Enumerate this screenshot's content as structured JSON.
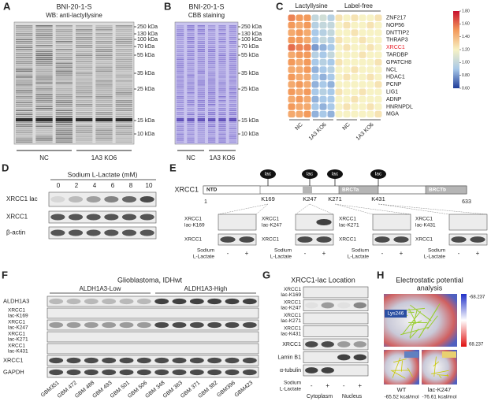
{
  "panels": {
    "A": {
      "letter": "A",
      "title": "BNI-20-1-S",
      "subtitle": "WB: anti-lactyllysine",
      "markers": [
        "250 kDa",
        "130 kDa",
        "100 kDa",
        "70 kDa",
        "55 kDa",
        "35 kDa",
        "25 kDa",
        "15 kDa",
        "10 kDa"
      ],
      "groups": [
        "NC",
        "1A3 KO6"
      ]
    },
    "B": {
      "letter": "B",
      "title": "BNI-20-1-S",
      "subtitle": "CBB staining",
      "markers": [
        "250 kDa",
        "130 kDa",
        "100 kDa",
        "70 kDa",
        "55 kDa",
        "35 kDa",
        "25 kDa",
        "15 kDa",
        "10 kDa"
      ],
      "groups": [
        "NC",
        "1A3 KO6"
      ]
    },
    "C": {
      "letter": "C",
      "group_labels": [
        "Lactyllysine",
        "Label-free"
      ],
      "genes": [
        {
          "name": "ZNF217",
          "color": "#222222"
        },
        {
          "name": "NOP56",
          "color": "#222222"
        },
        {
          "name": "DNTTIP2",
          "color": "#222222"
        },
        {
          "name": "THRAP3",
          "color": "#222222"
        },
        {
          "name": "XRCC1",
          "color": "#e8202a"
        },
        {
          "name": "TARDBP",
          "color": "#222222"
        },
        {
          "name": "GPATCH8",
          "color": "#222222"
        },
        {
          "name": "NCL",
          "color": "#222222"
        },
        {
          "name": "HDAC1",
          "color": "#222222"
        },
        {
          "name": "PCNP",
          "color": "#222222"
        },
        {
          "name": "LIG1",
          "color": "#222222"
        },
        {
          "name": "ADNP",
          "color": "#222222"
        },
        {
          "name": "HNRNPDL",
          "color": "#222222"
        },
        {
          "name": "MGA",
          "color": "#222222"
        }
      ],
      "column_labels": [
        "NC",
        "1A3 KO6",
        "NC",
        "1A3 KO6"
      ],
      "values": [
        [
          1.55,
          1.5,
          1.5,
          1.0,
          1.05,
          0.95,
          1.25,
          1.2,
          1.25,
          1.2,
          1.2,
          1.25
        ],
        [
          1.5,
          1.45,
          1.5,
          0.95,
          1.0,
          1.0,
          1.2,
          1.25,
          1.2,
          1.2,
          1.25,
          1.2
        ],
        [
          1.45,
          1.5,
          1.45,
          0.9,
          0.95,
          1.0,
          1.2,
          1.2,
          1.25,
          1.2,
          1.2,
          1.2
        ],
        [
          1.5,
          1.5,
          1.45,
          0.9,
          1.0,
          0.95,
          1.25,
          1.2,
          1.2,
          1.25,
          1.2,
          1.2
        ],
        [
          1.6,
          1.55,
          1.55,
          0.8,
          0.85,
          0.9,
          1.2,
          1.25,
          1.2,
          1.2,
          1.25,
          1.2
        ],
        [
          1.45,
          1.5,
          1.5,
          0.95,
          0.9,
          1.0,
          1.2,
          1.2,
          1.2,
          1.25,
          1.2,
          1.2
        ],
        [
          1.5,
          1.45,
          1.5,
          0.9,
          0.95,
          0.9,
          1.25,
          1.2,
          1.2,
          1.2,
          1.2,
          1.25
        ],
        [
          1.45,
          1.45,
          1.5,
          0.85,
          0.9,
          0.95,
          1.2,
          1.2,
          1.25,
          1.2,
          1.2,
          1.2
        ],
        [
          1.5,
          1.45,
          1.45,
          0.9,
          0.85,
          0.9,
          1.2,
          1.25,
          1.2,
          1.2,
          1.25,
          1.2
        ],
        [
          1.45,
          1.5,
          1.45,
          0.85,
          0.9,
          0.85,
          1.2,
          1.2,
          1.2,
          1.2,
          1.2,
          1.25
        ],
        [
          1.5,
          1.45,
          1.5,
          0.9,
          0.95,
          0.9,
          1.25,
          1.2,
          1.2,
          1.25,
          1.2,
          1.2
        ],
        [
          1.45,
          1.5,
          1.45,
          0.85,
          0.9,
          0.9,
          1.2,
          1.2,
          1.25,
          1.2,
          1.2,
          1.2
        ],
        [
          1.5,
          1.45,
          1.45,
          0.9,
          0.85,
          0.9,
          1.2,
          1.25,
          1.2,
          1.2,
          1.25,
          1.2
        ],
        [
          1.45,
          1.45,
          1.5,
          0.85,
          0.9,
          0.85,
          1.2,
          1.2,
          1.2,
          1.2,
          1.2,
          1.25
        ]
      ],
      "scale_lim": [
        0.6,
        1.8
      ],
      "scale_ticks": [
        {
          "value": 1.8,
          "label": "1.80"
        },
        {
          "value": 1.6,
          "label": "1.60"
        },
        {
          "value": 1.4,
          "label": "1.40"
        },
        {
          "value": 1.2,
          "label": "1.20"
        },
        {
          "value": 1.0,
          "label": "1.00"
        },
        {
          "value": 0.8,
          "label": "0.80"
        },
        {
          "value": 0.6,
          "label": "0.60"
        }
      ]
    },
    "D": {
      "letter": "D",
      "title": "Sodium L-Lactate (mM)",
      "concentrations": [
        0,
        2,
        4,
        6,
        8,
        10
      ],
      "rows": [
        "XRCC1 lac",
        "XRCC1",
        "β-actin"
      ]
    },
    "E": {
      "letter": "E",
      "protein": "XRCC1",
      "start": 1,
      "end": 633,
      "domains": [
        "NTD",
        "BRCTa",
        "BRCTb"
      ],
      "mod": "lac",
      "sites": [
        "K169",
        "K247",
        "K271",
        "K431"
      ],
      "blots": [
        {
          "label": [
            "XRCC1",
            "lac-K169"
          ],
          "control": "XRCC1",
          "treatment": [
            "Sodium",
            "L-Lactate"
          ],
          "signs": [
            "-",
            "+"
          ]
        },
        {
          "label": [
            "XRCC1",
            "lac-K247"
          ],
          "control": "XRCC1",
          "treatment": [
            "Sodium",
            "L-Lactate"
          ],
          "signs": [
            "-",
            "+"
          ]
        },
        {
          "label": [
            "XRCC1",
            "lac-K271"
          ],
          "control": "XRCC1",
          "treatment": [
            "Sodium",
            "L-Lactate"
          ],
          "signs": [
            "-",
            "+"
          ]
        },
        {
          "label": [
            "XRCC1",
            "lac-K431"
          ],
          "control": "XRCC1",
          "treatment": [
            "Sodium",
            "L-Lactate"
          ],
          "signs": [
            "-",
            "+"
          ]
        }
      ]
    },
    "F": {
      "letter": "F",
      "title": "Glioblastoma, IDHwt",
      "groups": [
        "ALDH1A3-Low",
        "ALDH1A3-High"
      ],
      "rows": [
        [
          "ALDH1A3"
        ],
        [
          "XRCC1",
          "lac-K169"
        ],
        [
          "XRCC1",
          "lac-K247"
        ],
        [
          "XRCC1",
          "lac-K271"
        ],
        [
          "XRCC1",
          "lac-K431"
        ],
        [
          "XRCC1"
        ],
        [
          "GAPDH"
        ]
      ],
      "samples": [
        "GBM351",
        "GBM 472",
        "GBM 488",
        "GBM 493",
        "GBM 501",
        "GBM 506",
        "GBM 348",
        "GBM 363",
        "GBM 371",
        "GBM 382",
        "GBM396",
        "GBM423"
      ]
    },
    "G": {
      "letter": "G",
      "title": "XRCC1-lac Location",
      "rows": [
        [
          "XRCC1",
          "lac-K169"
        ],
        [
          "XRCC1",
          "lac-K247"
        ],
        [
          "XRCC1",
          "lac-K271"
        ],
        [
          "XRCC1",
          "lac-K431"
        ],
        [
          "XRCC1"
        ],
        [
          "Lamin B1"
        ],
        [
          "α-tubulin"
        ]
      ],
      "treatment": [
        "Sodium",
        "L-Lactate"
      ],
      "signs": [
        "-",
        "+",
        "-",
        "+"
      ],
      "fractions": [
        "Cytoplasm",
        "Nucleus"
      ]
    },
    "H": {
      "letter": "H",
      "title": [
        "Electrostatic potential",
        "analysis"
      ],
      "scale": [
        "-68.237",
        "68.237"
      ],
      "residue": "Lys246",
      "structures": [
        {
          "name": "WT",
          "energy": "-65.52 kcal/mol"
        },
        {
          "name": "lac-K247",
          "energy": "-76.61 kcal/mol"
        }
      ]
    }
  }
}
